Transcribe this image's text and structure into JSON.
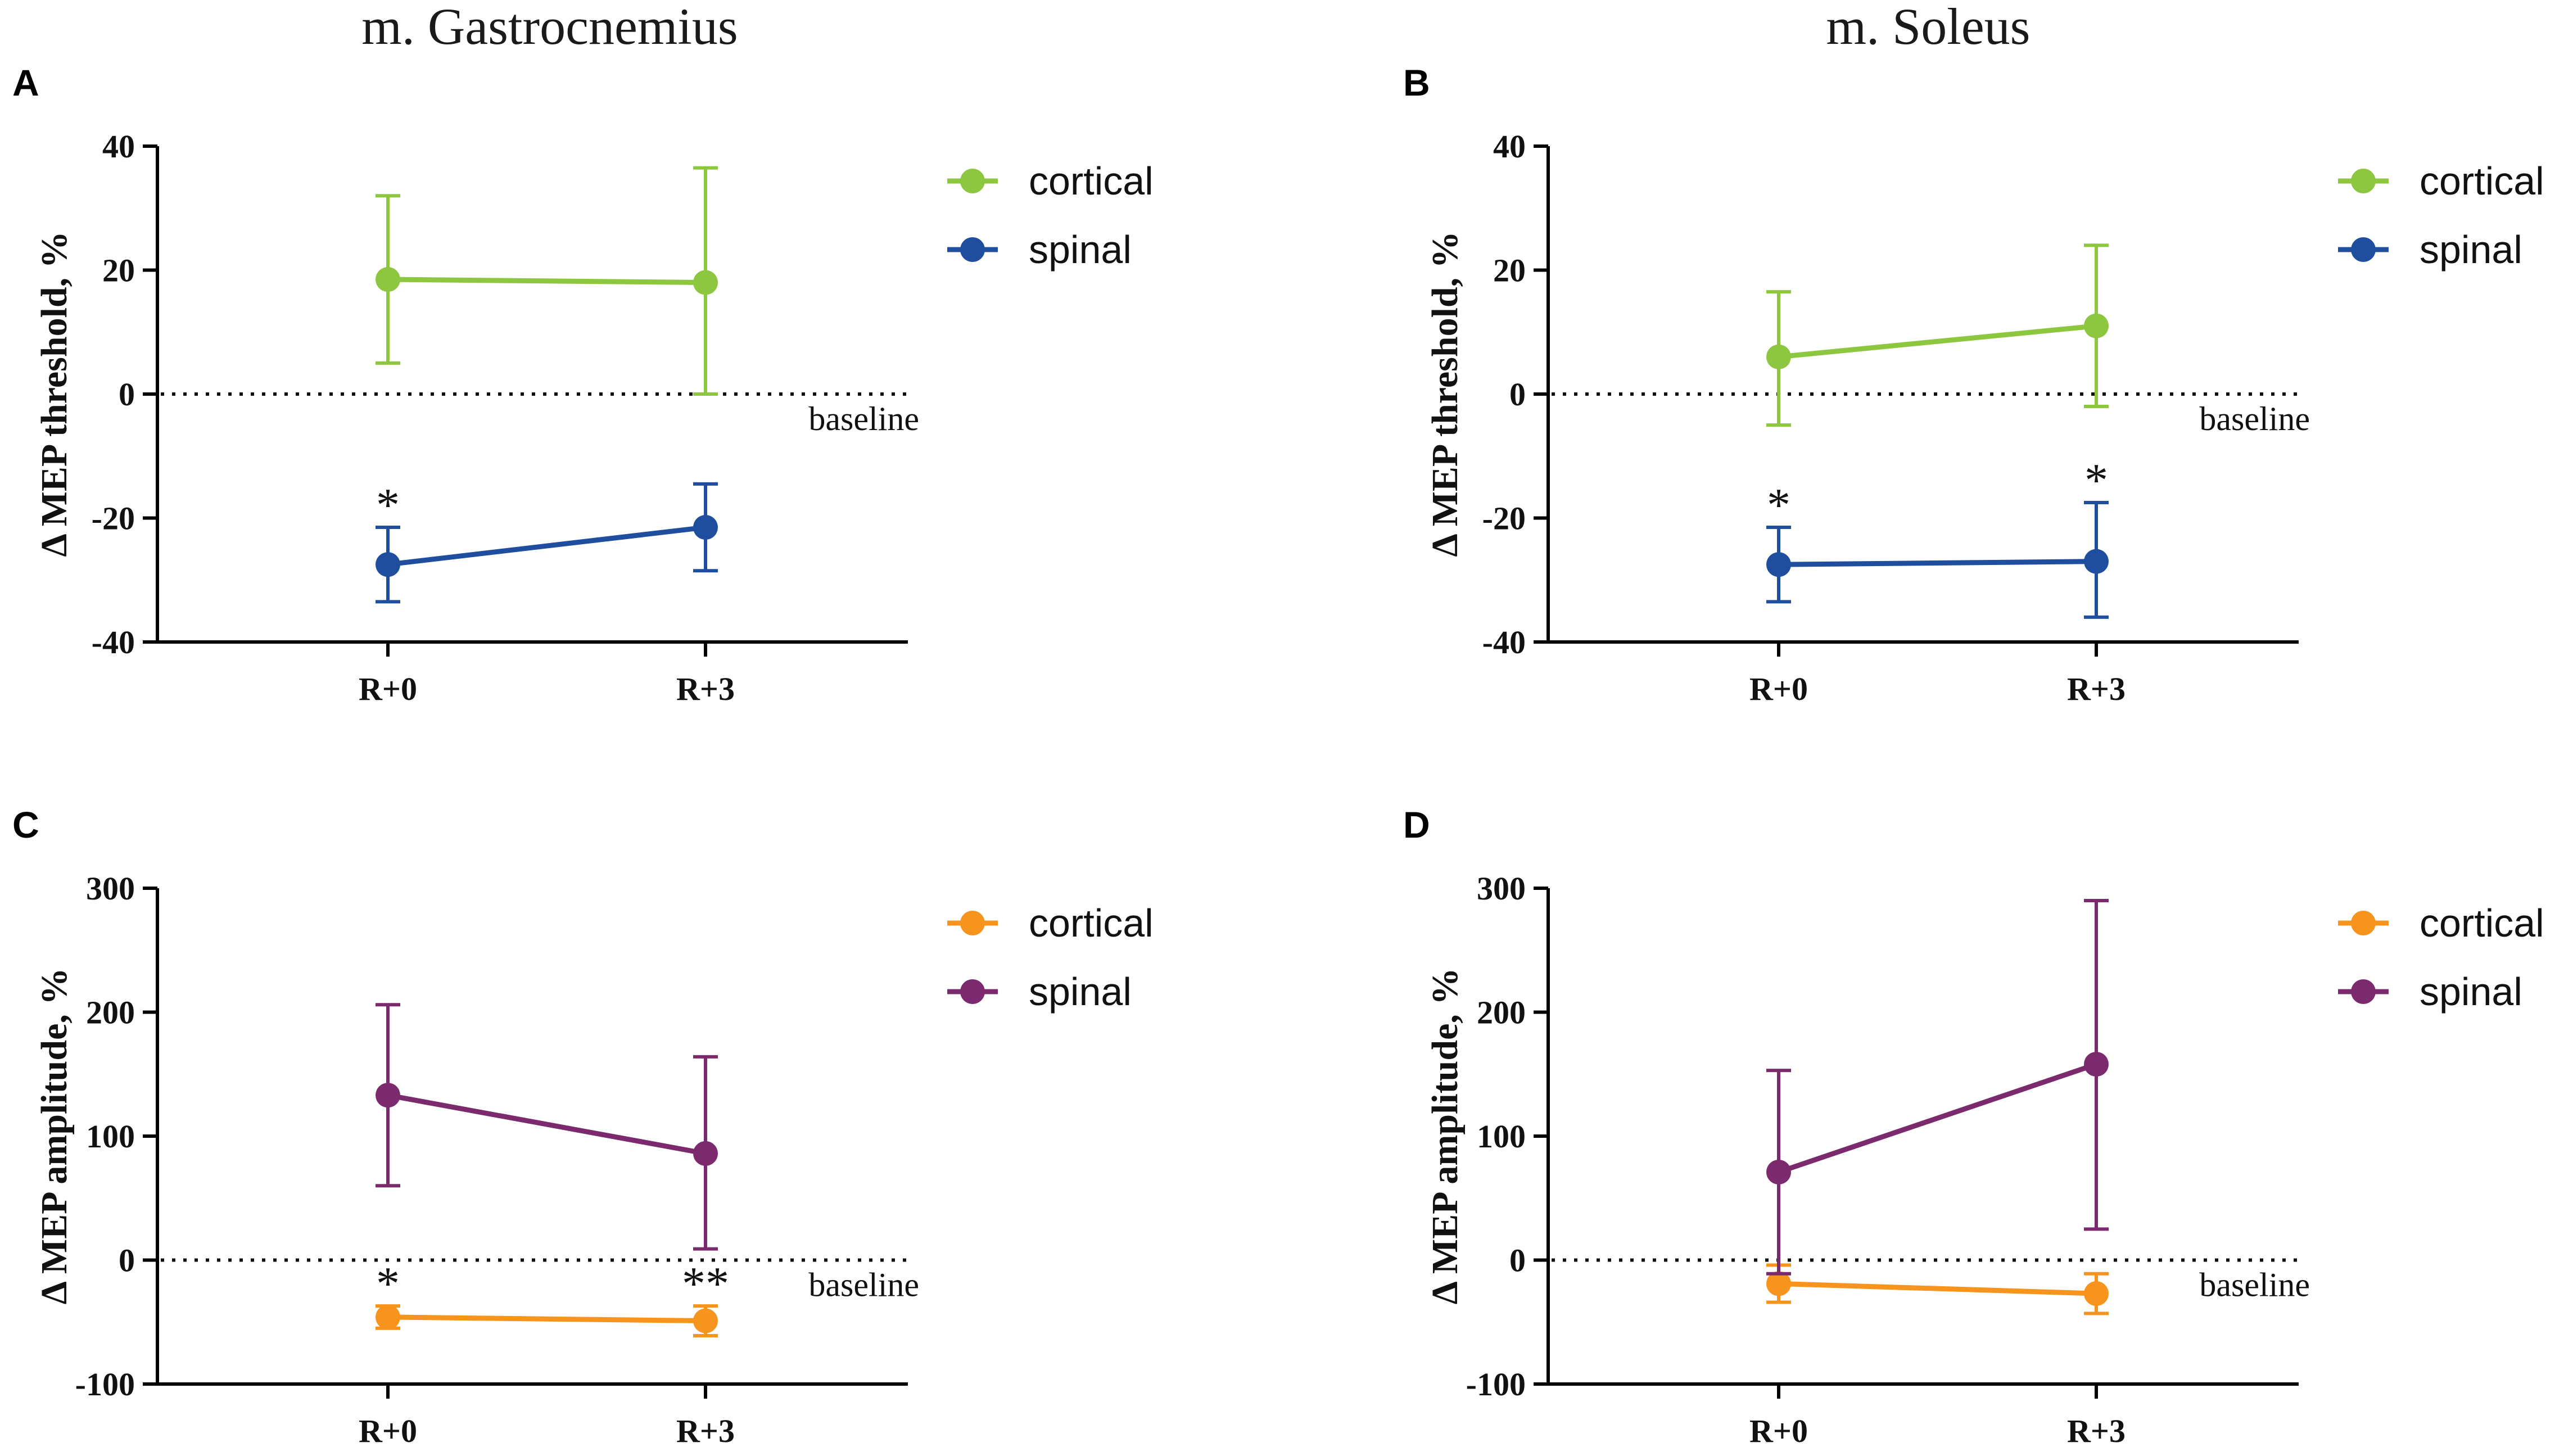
{
  "column_titles": [
    "m. Gastrocnemius",
    "m. Soleus"
  ],
  "chart_data": [
    {
      "panel": "A",
      "type": "line",
      "ylabel": "Δ MEP threshold, %",
      "ylim": [
        -40,
        40
      ],
      "yticks": [
        40,
        20,
        0,
        -20,
        -40
      ],
      "tick_labels": [
        "40",
        "20",
        "0",
        "-20",
        "-40"
      ],
      "categories": [
        "R+0",
        "R+3"
      ],
      "baseline_label": "baseline",
      "series": [
        {
          "name": "cortical",
          "color": "#8dc63f",
          "values": [
            18.5,
            18
          ],
          "upper": [
            32,
            36.5
          ],
          "lower": [
            5,
            0
          ]
        },
        {
          "name": "spinal",
          "color": "#1f4e9e",
          "values": [
            -27.5,
            -21.5
          ],
          "upper": [
            -21.5,
            -14.5
          ],
          "lower": [
            -33.5,
            -28.5
          ]
        }
      ],
      "annotations": [
        {
          "x": "R+0",
          "y": -21.5,
          "text": "*"
        }
      ]
    },
    {
      "panel": "B",
      "type": "line",
      "ylabel": "Δ MEP threshold, %",
      "ylim": [
        -40,
        40
      ],
      "yticks": [
        40,
        20,
        0,
        -20,
        -40
      ],
      "tick_labels": [
        "40",
        "20",
        "0",
        "-20",
        "-40"
      ],
      "categories": [
        "R+0",
        "R+3"
      ],
      "baseline_label": "baseline",
      "series": [
        {
          "name": "cortical",
          "color": "#8dc63f",
          "values": [
            6,
            11
          ],
          "upper": [
            16.5,
            24
          ],
          "lower": [
            -5,
            -2
          ]
        },
        {
          "name": "spinal",
          "color": "#1f4e9e",
          "values": [
            -27.5,
            -27
          ],
          "upper": [
            -21.5,
            -17.5
          ],
          "lower": [
            -33.5,
            -36
          ]
        }
      ],
      "annotations": [
        {
          "x": "R+0",
          "y": -21.5,
          "text": "*"
        },
        {
          "x": "R+3",
          "y": -17.5,
          "text": "*"
        }
      ]
    },
    {
      "panel": "C",
      "type": "line",
      "ylabel": "Δ MEP amplitude, %",
      "ylim": [
        -100,
        300
      ],
      "yticks": [
        300,
        200,
        100,
        0,
        -100
      ],
      "tick_labels": [
        "300",
        "200",
        "100",
        "0",
        "-100"
      ],
      "categories": [
        "R+0",
        "R+3"
      ],
      "baseline_label": "baseline",
      "series": [
        {
          "name": "cortical",
          "color": "#f7941d",
          "values": [
            -46,
            -49
          ],
          "upper": [
            -37,
            -37
          ],
          "lower": [
            -55,
            -61
          ]
        },
        {
          "name": "spinal",
          "color": "#7b2a6e",
          "values": [
            133,
            86
          ],
          "upper": [
            206,
            164
          ],
          "lower": [
            60,
            9
          ]
        }
      ],
      "annotations": [
        {
          "x": "R+0",
          "y": -37,
          "text": "*"
        },
        {
          "x": "R+3",
          "y": -37,
          "text": "**"
        }
      ]
    },
    {
      "panel": "D",
      "type": "line",
      "ylabel": "Δ MEP amplitude, %",
      "ylim": [
        -100,
        300
      ],
      "yticks": [
        300,
        200,
        100,
        0,
        -100
      ],
      "tick_labels": [
        "300",
        "200",
        "100",
        "0",
        "-100"
      ],
      "categories": [
        "R+0",
        "R+3"
      ],
      "baseline_label": "baseline",
      "series": [
        {
          "name": "cortical",
          "color": "#f7941d",
          "values": [
            -19,
            -27
          ],
          "upper": [
            -4,
            -11
          ],
          "lower": [
            -34,
            -43
          ]
        },
        {
          "name": "spinal",
          "color": "#7b2a6e",
          "values": [
            71,
            158
          ],
          "upper": [
            153,
            290
          ],
          "lower": [
            -11,
            25
          ]
        }
      ],
      "annotations": []
    }
  ]
}
